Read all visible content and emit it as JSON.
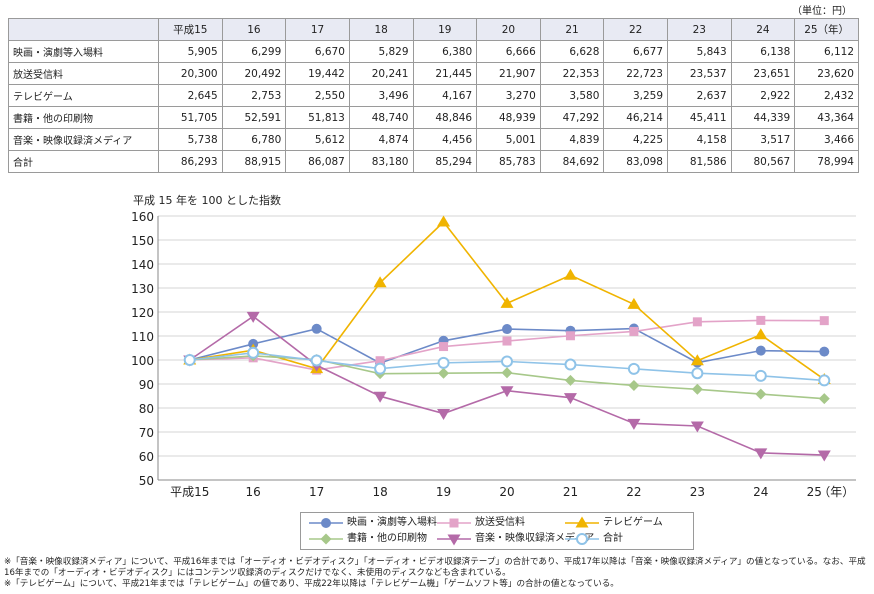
{
  "unit_note": "（単位：円）",
  "table": {
    "headers": [
      "",
      "平成15",
      "16",
      "17",
      "18",
      "19",
      "20",
      "21",
      "22",
      "23",
      "24",
      "25（年）"
    ],
    "rows": [
      {
        "label": "映画・演劇等入場料",
        "values": [
          "5,905",
          "6,299",
          "6,670",
          "5,829",
          "6,380",
          "6,666",
          "6,628",
          "6,677",
          "5,843",
          "6,138",
          "6,112"
        ]
      },
      {
        "label": "放送受信料",
        "values": [
          "20,300",
          "20,492",
          "19,442",
          "20,241",
          "21,445",
          "21,907",
          "22,353",
          "22,723",
          "23,537",
          "23,651",
          "23,620"
        ]
      },
      {
        "label": "テレビゲーム",
        "values": [
          "2,645",
          "2,753",
          "2,550",
          "3,496",
          "4,167",
          "3,270",
          "3,580",
          "3,259",
          "2,637",
          "2,922",
          "2,432"
        ]
      },
      {
        "label": "書籍・他の印刷物",
        "values": [
          "51,705",
          "52,591",
          "51,813",
          "48,740",
          "48,846",
          "48,939",
          "47,292",
          "46,214",
          "45,411",
          "44,339",
          "43,364"
        ]
      },
      {
        "label": "音楽・映像収録済メディア",
        "values": [
          "5,738",
          "6,780",
          "5,612",
          "4,874",
          "4,456",
          "5,001",
          "4,839",
          "4,225",
          "4,158",
          "3,517",
          "3,466"
        ]
      },
      {
        "label": "合計",
        "values": [
          "86,293",
          "88,915",
          "86,087",
          "83,180",
          "85,294",
          "85,783",
          "84,692",
          "83,098",
          "81,586",
          "80,567",
          "78,994"
        ]
      }
    ]
  },
  "chart_data": {
    "type": "line",
    "title": "平成 15 年を 100 とした指数",
    "categories": [
      "平成15",
      "16",
      "17",
      "18",
      "19",
      "20",
      "21",
      "22",
      "23",
      "24",
      "25"
    ],
    "x_unit": "（年）",
    "ylim": [
      50,
      160
    ],
    "yticks": [
      50,
      60,
      70,
      80,
      90,
      100,
      110,
      120,
      130,
      140,
      150,
      160
    ],
    "grid": "horizontal",
    "series": [
      {
        "name": "映画・演劇等入場料",
        "color": "#6c8ac8",
        "marker": "circle",
        "values": [
          100,
          106.7,
          113.0,
          98.7,
          108.0,
          112.9,
          112.2,
          113.1,
          98.9,
          103.9,
          103.5
        ]
      },
      {
        "name": "放送受信料",
        "color": "#e3a3c8",
        "marker": "square",
        "values": [
          100,
          100.9,
          95.8,
          99.7,
          105.6,
          107.9,
          110.1,
          111.9,
          115.9,
          116.5,
          116.4
        ]
      },
      {
        "name": "テレビゲーム",
        "color": "#f0b400",
        "marker": "triangle-up",
        "values": [
          100,
          104.1,
          96.4,
          132.2,
          157.5,
          123.6,
          135.3,
          123.2,
          99.7,
          110.5,
          91.9
        ]
      },
      {
        "name": "書籍・他の印刷物",
        "color": "#a7c88a",
        "marker": "diamond",
        "values": [
          100,
          101.7,
          100.2,
          94.3,
          94.5,
          94.7,
          91.5,
          89.4,
          87.8,
          85.8,
          83.9
        ]
      },
      {
        "name": "音楽・映像収録済メディア",
        "color": "#b46aa8",
        "marker": "triangle-down",
        "values": [
          100,
          118.2,
          97.8,
          84.9,
          77.7,
          87.2,
          84.3,
          73.6,
          72.5,
          61.3,
          60.4
        ]
      },
      {
        "name": "合計",
        "color": "#8fc3e8",
        "marker": "open-circle",
        "values": [
          100,
          103.0,
          99.8,
          96.4,
          98.8,
          99.4,
          98.1,
          96.3,
          94.5,
          93.4,
          91.5
        ]
      }
    ]
  },
  "footnotes": [
    "※「音楽・映像収録済メディア」について、平成16年までは「オーディオ・ビデオディスク」「オーディオ・ビデオ収録済テープ」の合計であり、平成17年以降は「音楽・映像収録済メディア」の値となっている。なお、平成16年までの「オーディオ・ビデオディスク」にはコンテンツ収録済のディスクだけでなく、未使用のディスクなども含まれている。",
    "※「テレビゲーム」について、平成21年までは「テレビゲーム」の値であり、平成22年以降は「テレビゲーム機」「ゲームソフト等」の合計の値となっている。"
  ]
}
